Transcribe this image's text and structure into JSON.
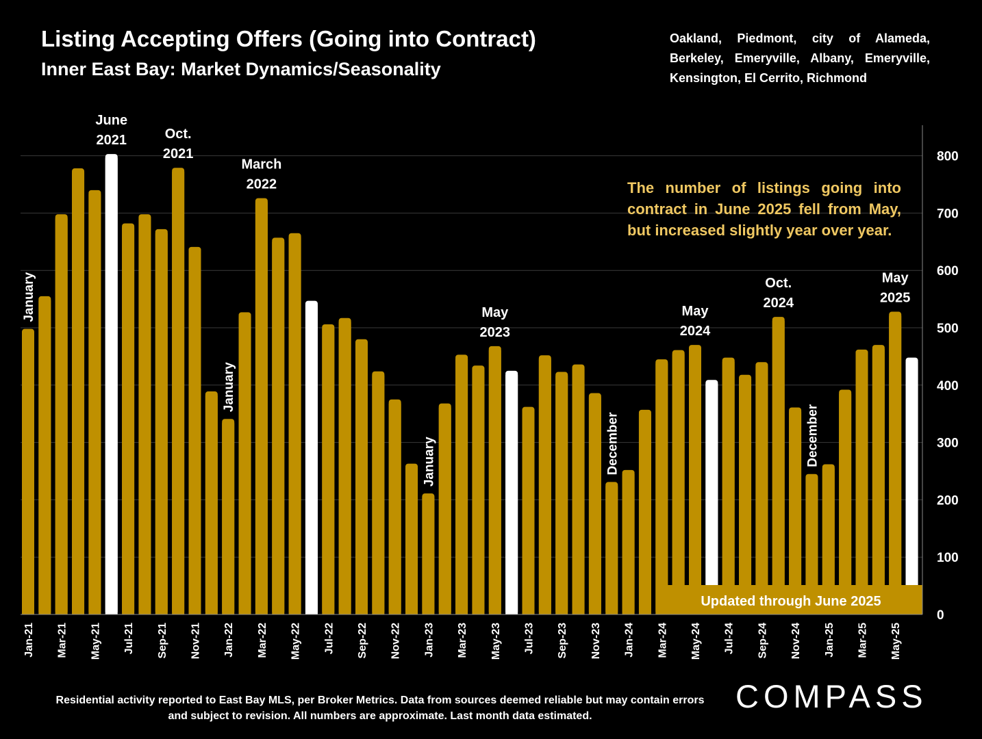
{
  "title": "Listing Accepting Offers (Going into Contract)",
  "subtitle": "Inner East Bay: Market Dynamics/Seasonality",
  "region_note": "Oakland, Piedmont, city of Alameda, Berkeley, Emeryville, Albany, Emeryville, Kensington, El Cerrito, Richmond",
  "callout": "The number of listings going into contract in June 2025 fell from May, but increased slightly year over year.",
  "updated_label": "Updated through June 2025",
  "footer": "Residential activity reported to East Bay MLS, per Broker Metrics. Data from sources deemed reliable but may contain errors and subject to revision. All numbers are approximate. Last month data estimated.",
  "logo": "COMPASS",
  "colors": {
    "bar": "#bf9000",
    "highlight": "#ffffff",
    "background": "#000000",
    "callout": "#f0c862"
  },
  "chart_data": {
    "type": "bar",
    "categories": [
      "Jan-21",
      "Feb-21",
      "Mar-21",
      "Apr-21",
      "May-21",
      "Jun-21",
      "Jul-21",
      "Aug-21",
      "Sep-21",
      "Oct-21",
      "Nov-21",
      "Dec-21",
      "Jan-22",
      "Feb-22",
      "Mar-22",
      "Apr-22",
      "May-22",
      "Jun-22",
      "Jul-22",
      "Aug-22",
      "Sep-22",
      "Oct-22",
      "Nov-22",
      "Dec-22",
      "Jan-23",
      "Feb-23",
      "Mar-23",
      "Apr-23",
      "May-23",
      "Jun-23",
      "Jul-23",
      "Aug-23",
      "Sep-23",
      "Oct-23",
      "Nov-23",
      "Dec-23",
      "Jan-24",
      "Feb-24",
      "Mar-24",
      "Apr-24",
      "May-24",
      "Jun-24",
      "Jul-24",
      "Aug-24",
      "Sep-24",
      "Oct-24",
      "Nov-24",
      "Dec-24",
      "Jan-25",
      "Feb-25",
      "Mar-25",
      "Apr-25",
      "May-25",
      "Jun-25"
    ],
    "values": [
      498,
      555,
      698,
      778,
      740,
      803,
      682,
      698,
      672,
      779,
      641,
      389,
      341,
      527,
      726,
      657,
      665,
      547,
      506,
      517,
      480,
      424,
      375,
      263,
      211,
      368,
      453,
      434,
      468,
      425,
      362,
      452,
      423,
      436,
      386,
      231,
      252,
      357,
      445,
      461,
      470,
      409,
      448,
      418,
      440,
      519,
      361,
      245,
      262,
      392,
      462,
      470,
      528,
      448
    ],
    "highlight": [
      "Jun-21",
      "Jun-22",
      "Jun-23",
      "Jun-24",
      "Jun-25"
    ],
    "tick_labels": [
      "Jan-21",
      "Mar-21",
      "May-21",
      "Jul-21",
      "Sep-21",
      "Nov-21",
      "Jan-22",
      "Mar-22",
      "May-22",
      "Jul-22",
      "Sep-22",
      "Nov-22",
      "Jan-23",
      "Mar-23",
      "May-23",
      "Jul-23",
      "Sep-23",
      "Nov-23",
      "Jan-24",
      "Mar-24",
      "May-24",
      "Jul-24",
      "Sep-24",
      "Nov-24",
      "Jan-25",
      "Mar-25",
      "May-25"
    ],
    "y_ticks": [
      0,
      100,
      200,
      300,
      400,
      500,
      600,
      700,
      800
    ],
    "ylim": [
      0,
      850
    ],
    "y_axis_side": "right",
    "annotations": [
      {
        "text": "January",
        "category": "Jan-21",
        "vertical": true
      },
      {
        "text": "June\n2021",
        "category": "Jun-21",
        "vertical": false
      },
      {
        "text": "Oct.\n2021",
        "category": "Oct-21",
        "vertical": false
      },
      {
        "text": "January",
        "category": "Jan-22",
        "vertical": true
      },
      {
        "text": "March\n2022",
        "category": "Mar-22",
        "vertical": false
      },
      {
        "text": "January",
        "category": "Jan-23",
        "vertical": true
      },
      {
        "text": "May\n2023",
        "category": "May-23",
        "vertical": false
      },
      {
        "text": "December",
        "category": "Dec-23",
        "vertical": true
      },
      {
        "text": "May\n2024",
        "category": "May-24",
        "vertical": false
      },
      {
        "text": "Oct.\n2024",
        "category": "Oct-24",
        "vertical": false
      },
      {
        "text": "December",
        "category": "Dec-24",
        "vertical": true
      },
      {
        "text": "May\n2025",
        "category": "May-25",
        "vertical": false
      }
    ]
  }
}
